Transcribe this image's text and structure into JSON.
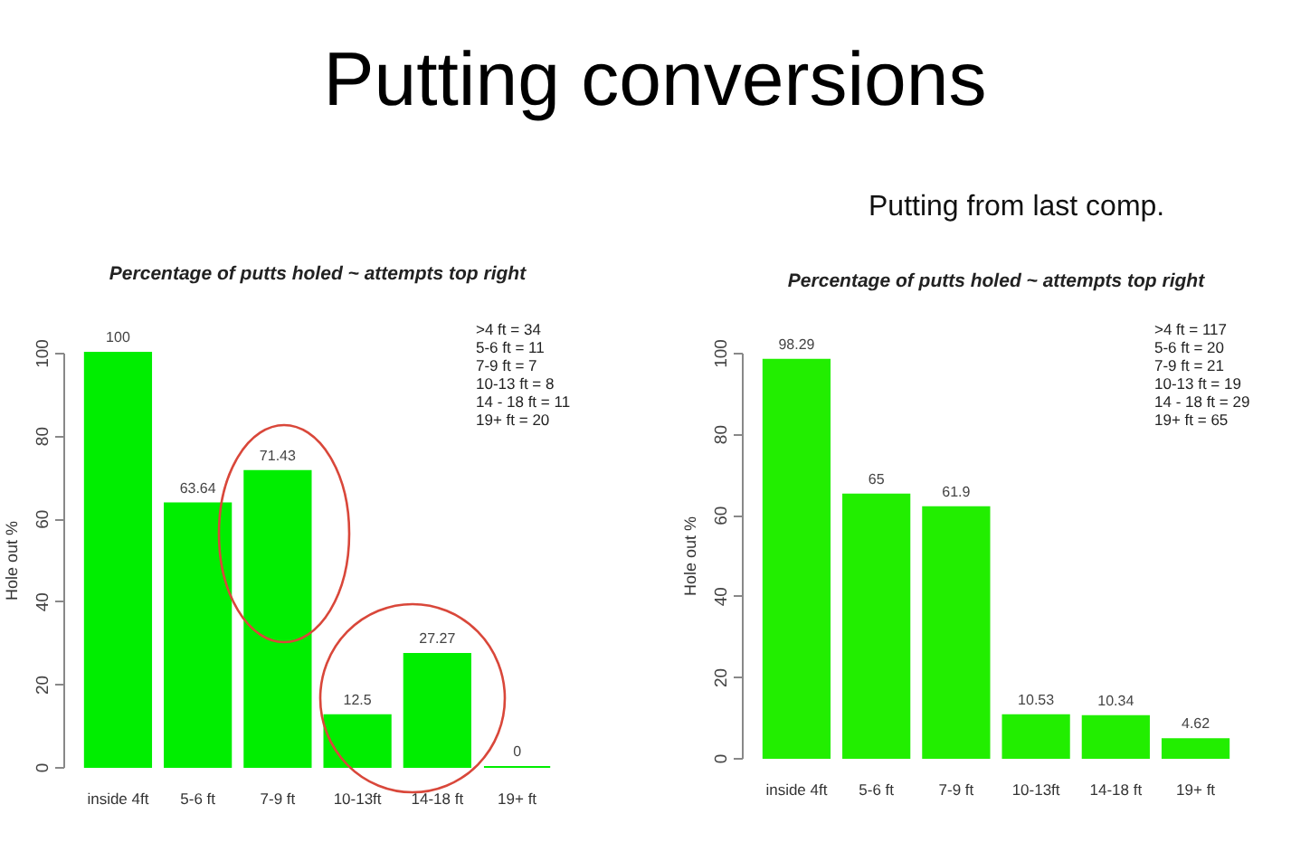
{
  "chart_data": [
    {
      "type": "bar",
      "title": "Percentage of putts holed ~ attempts top right",
      "ylabel": "Hole out %",
      "categories": [
        "inside 4ft",
        "5-6 ft",
        "7-9 ft",
        "10-13ft",
        "14-18 ft",
        "19+ ft"
      ],
      "values": [
        100,
        63.64,
        71.43,
        12.5,
        27.27,
        0
      ],
      "color": "#00ee00",
      "ylim": [
        0,
        100
      ],
      "yticks": [
        0,
        20,
        40,
        60,
        80,
        100
      ],
      "data_labels": true,
      "annotations": [
        "Putting conversions",
        ">4 ft = 34",
        "5-6 ft = 11",
        "7-9 ft = 7",
        "10-13 ft = 8",
        "14 - 18 ft = 11",
        "19+ ft = 20"
      ]
    },
    {
      "type": "bar",
      "title": "Percentage of putts holed ~ attempts top right",
      "ylabel": "Hole out %",
      "categories": [
        "inside 4ft",
        "5-6 ft",
        "7-9 ft",
        "10-13ft",
        "14-18 ft",
        "19+ ft"
      ],
      "values": [
        98.29,
        65,
        61.9,
        10.53,
        10.34,
        4.62
      ],
      "color": "#22ee00",
      "ylim": [
        0,
        100
      ],
      "yticks": [
        0,
        20,
        40,
        60,
        80,
        100
      ],
      "data_labels": true,
      "annotations": [
        "Putting from last comp.",
        ">4 ft = 117",
        "5-6 ft = 20",
        "7-9 ft = 21",
        "10-13 ft = 19",
        "14 - 18 ft = 29",
        "19+ ft = 65"
      ]
    }
  ]
}
